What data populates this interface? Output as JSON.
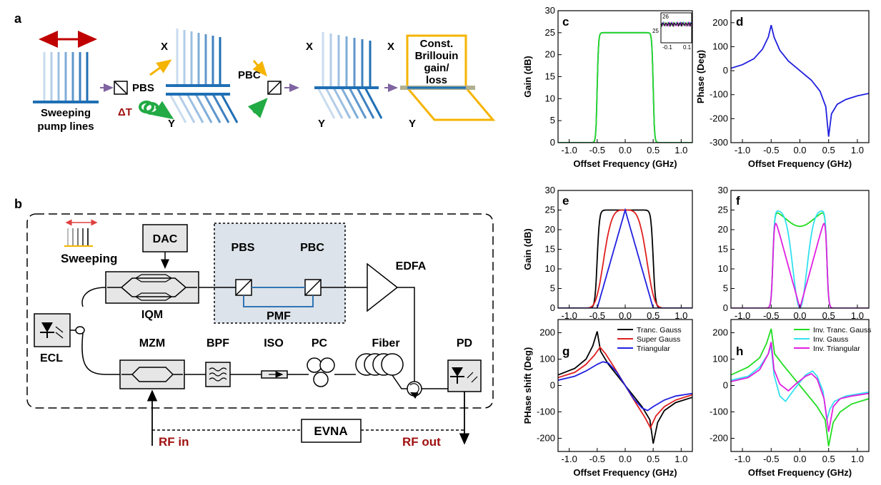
{
  "colors": {
    "pump": "#1f6fb4",
    "arrow_red": "#c00000",
    "arrow_yellow": "#f5b400",
    "arrow_green": "#22aa44",
    "purple": "#8064a2",
    "dark_red_text": "#a01010",
    "box_fill": "#e6e6e6",
    "pbs_area_fill": "#dde3ea",
    "pmf_blue": "#2f75b5",
    "black": "#000000",
    "red": "#e02020",
    "blue": "#2020e0",
    "green": "#22dd22",
    "cyan": "#33e0f0",
    "magenta": "#e020e0"
  },
  "panels": {
    "a": "a",
    "b": "b",
    "c": "c",
    "d": "d",
    "e": "e",
    "f": "f",
    "g": "g",
    "h": "h"
  },
  "panel_a": {
    "sweeping_line1": "Sweeping",
    "sweeping_line2": "pump lines",
    "pbs": "PBS",
    "pbc": "PBC",
    "delta_t": "ΔT",
    "x": "X",
    "y": "Y",
    "const_line1": "Const.",
    "const_line2": "Brillouin",
    "const_line3": "gain/",
    "const_line4": "loss"
  },
  "panel_b": {
    "sweeping": "Sweeping",
    "dac": "DAC",
    "iqm": "IQM",
    "pbs": "PBS",
    "pbc": "PBC",
    "pmf": "PMF",
    "edfa": "EDFA",
    "ecl": "ECL",
    "mzm": "MZM",
    "bpf": "BPF",
    "iso": "ISO",
    "pc": "PC",
    "fiber": "Fiber",
    "pd": "PD",
    "evna": "EVNA",
    "rf_in": "RF in",
    "rf_out": "RF out"
  },
  "chart_data": [
    {
      "id": "c",
      "type": "line",
      "xlabel": "Offset Frequency (GHz)",
      "ylabel": "Gain (dB)",
      "xlim": [
        -1.2,
        1.2
      ],
      "ylim": [
        0,
        30
      ],
      "xticks": [
        -1.0,
        -0.5,
        0.0,
        0.5,
        1.0
      ],
      "xticklabels": [
        "-1.0",
        "-0.5",
        "0.0",
        "0.5",
        "1.0"
      ],
      "yticks": [
        0,
        5,
        10,
        15,
        20,
        25,
        30
      ],
      "yticklabels": [
        "0",
        "5",
        "10",
        "15",
        "20",
        "25",
        "30"
      ],
      "inset": {
        "yticklabels": [
          "26",
          "25"
        ],
        "xticklabels": [
          "-0.1",
          "0.1"
        ]
      },
      "curves": [
        {
          "model": "rect",
          "w": 0.5,
          "s": 0.012,
          "amp": 25,
          "color": "#2020e0"
        },
        {
          "model": "rect",
          "w": 0.5,
          "s": 0.012,
          "amp": 25,
          "color": "#22dd22"
        }
      ]
    },
    {
      "id": "d",
      "type": "line",
      "xlabel": "Offset Frequency (GHz)",
      "ylabel": "Phase (Deg)",
      "xlim": [
        -1.2,
        1.2
      ],
      "ylim": [
        -300,
        250
      ],
      "xticks": [
        -1.0,
        -0.5,
        0.0,
        0.5,
        1.0
      ],
      "xticklabels": [
        "-1.0",
        "-0.5",
        "0.0",
        "0.5",
        "1.0"
      ],
      "yticks": [
        -300,
        -200,
        -100,
        0,
        100,
        200
      ],
      "yticklabels": [
        "-300",
        "-200",
        "-100",
        "0",
        "100",
        "200"
      ],
      "points": [
        [
          -1.2,
          10
        ],
        [
          -1.0,
          25
        ],
        [
          -0.8,
          50
        ],
        [
          -0.65,
          90
        ],
        [
          -0.55,
          140
        ],
        [
          -0.5,
          190
        ],
        [
          -0.45,
          140
        ],
        [
          -0.35,
          85
        ],
        [
          -0.2,
          40
        ],
        [
          0.0,
          0
        ],
        [
          0.2,
          -40
        ],
        [
          0.35,
          -85
        ],
        [
          0.45,
          -150
        ],
        [
          0.5,
          -275
        ],
        [
          0.55,
          -180
        ],
        [
          0.65,
          -140
        ],
        [
          0.8,
          -120
        ],
        [
          1.0,
          -105
        ],
        [
          1.2,
          -95
        ]
      ],
      "color": "#2020e0"
    },
    {
      "id": "e",
      "type": "line",
      "xlabel": "",
      "ylabel": "Gain (dB)",
      "xlim": [
        -1.2,
        1.2
      ],
      "ylim": [
        0,
        30
      ],
      "xticks": [
        -1.0,
        -0.5,
        0.0,
        0.5,
        1.0
      ],
      "xticklabels": [
        "-1.0",
        "-0.5",
        "0.0",
        "0.5",
        "1.0"
      ],
      "yticks": [
        0,
        5,
        10,
        15,
        20,
        25,
        30
      ],
      "yticklabels": [
        "0",
        "5",
        "10",
        "15",
        "20",
        "25",
        "30"
      ],
      "curves": [
        {
          "model": "rect",
          "w": 0.5,
          "s": 0.02,
          "amp": 25,
          "color": "#000000"
        },
        {
          "model": "supergauss",
          "w": 0.42,
          "amp": 25,
          "color": "#e02020"
        },
        {
          "model": "triangle",
          "w": 0.5,
          "amp": 25,
          "color": "#2020e0"
        }
      ]
    },
    {
      "id": "f",
      "type": "line",
      "xlabel": "",
      "ylabel": "",
      "xlim": [
        -1.2,
        1.2
      ],
      "ylim": [
        0,
        30
      ],
      "xticks": [
        -1.0,
        -0.5,
        0.0,
        0.5,
        1.0
      ],
      "xticklabels": [
        "-1.0",
        "-0.5",
        "0.0",
        "0.5",
        "1.0"
      ],
      "yticks": [
        0,
        5,
        10,
        15,
        20,
        25,
        30
      ],
      "yticklabels": [
        "0",
        "5",
        "10",
        "15",
        "20",
        "25",
        "30"
      ],
      "curves": [
        {
          "model": "invtrunc",
          "w": 0.47,
          "amp": 25,
          "color": "#22dd22"
        },
        {
          "model": "invgauss",
          "w": 0.47,
          "amp": 25,
          "color": "#33e0f0"
        },
        {
          "model": "invtri",
          "w": 0.47,
          "amp": 25,
          "color": "#e020e0"
        }
      ]
    },
    {
      "id": "g",
      "type": "line",
      "xlabel": "Offset Frequency (GHz)",
      "ylabel": "PHase shift (Deg)",
      "xlim": [
        -1.2,
        1.2
      ],
      "ylim": [
        -250,
        250
      ],
      "xticks": [
        -1.0,
        -0.5,
        0.0,
        0.5,
        1.0
      ],
      "xticklabels": [
        "-1.0",
        "-0.5",
        "0.0",
        "0.5",
        "1.0"
      ],
      "yticks": [
        -200,
        -100,
        0,
        100,
        200
      ],
      "yticklabels": [
        "-200",
        "-100",
        "0",
        "100",
        "200"
      ],
      "series": [
        {
          "name": "Tranc. Gauss",
          "color": "#000000",
          "points": [
            [
              -1.2,
              40
            ],
            [
              -0.9,
              65
            ],
            [
              -0.7,
              100
            ],
            [
              -0.58,
              150
            ],
            [
              -0.5,
              205
            ],
            [
              -0.44,
              130
            ],
            [
              -0.3,
              80
            ],
            [
              -0.15,
              40
            ],
            [
              0.0,
              0
            ],
            [
              0.15,
              -40
            ],
            [
              0.3,
              -80
            ],
            [
              0.44,
              -130
            ],
            [
              0.5,
              -220
            ],
            [
              0.58,
              -140
            ],
            [
              0.7,
              -95
            ],
            [
              0.9,
              -65
            ],
            [
              1.2,
              -45
            ]
          ]
        },
        {
          "name": "Super Gauss",
          "color": "#e02020",
          "points": [
            [
              -1.2,
              30
            ],
            [
              -0.9,
              50
            ],
            [
              -0.7,
              80
            ],
            [
              -0.55,
              115
            ],
            [
              -0.45,
              145
            ],
            [
              -0.35,
              120
            ],
            [
              -0.2,
              70
            ],
            [
              0.0,
              0
            ],
            [
              0.2,
              -70
            ],
            [
              0.35,
              -120
            ],
            [
              0.45,
              -160
            ],
            [
              0.55,
              -115
            ],
            [
              0.7,
              -80
            ],
            [
              0.9,
              -55
            ],
            [
              1.2,
              -35
            ]
          ]
        },
        {
          "name": "Triangular",
          "color": "#2020e0",
          "points": [
            [
              -1.2,
              20
            ],
            [
              -0.9,
              35
            ],
            [
              -0.7,
              55
            ],
            [
              -0.5,
              80
            ],
            [
              -0.4,
              90
            ],
            [
              -0.3,
              85
            ],
            [
              -0.15,
              50
            ],
            [
              0.0,
              0
            ],
            [
              0.15,
              -50
            ],
            [
              0.3,
              -85
            ],
            [
              0.4,
              -95
            ],
            [
              0.5,
              -80
            ],
            [
              0.7,
              -55
            ],
            [
              0.9,
              -40
            ],
            [
              1.2,
              -30
            ]
          ]
        }
      ],
      "legend": "top-right"
    },
    {
      "id": "h",
      "type": "line",
      "xlabel": "Offset Frequency (GHz)",
      "ylabel": "",
      "xlim": [
        -1.2,
        1.2
      ],
      "ylim": [
        -250,
        250
      ],
      "xticks": [
        -1.0,
        -0.5,
        0.0,
        0.5,
        1.0
      ],
      "xticklabels": [
        "-1.0",
        "-0.5",
        "0.0",
        "0.5",
        "1.0"
      ],
      "yticks": [
        -200,
        -100,
        0,
        100,
        200
      ],
      "yticklabels": [
        "-200",
        "-100",
        "0",
        "100",
        "200"
      ],
      "series": [
        {
          "name": "Inv. Tranc. Gauss",
          "color": "#22dd22",
          "points": [
            [
              -1.2,
              40
            ],
            [
              -0.9,
              70
            ],
            [
              -0.7,
              105
            ],
            [
              -0.58,
              160
            ],
            [
              -0.5,
              215
            ],
            [
              -0.44,
              120
            ],
            [
              -0.3,
              80
            ],
            [
              -0.15,
              40
            ],
            [
              0.0,
              0
            ],
            [
              0.15,
              -40
            ],
            [
              0.3,
              -80
            ],
            [
              0.44,
              -130
            ],
            [
              0.5,
              -230
            ],
            [
              0.58,
              -140
            ],
            [
              0.7,
              -100
            ],
            [
              0.9,
              -70
            ],
            [
              1.2,
              -50
            ]
          ]
        },
        {
          "name": "Inv. Gauss",
          "color": "#33e0f0",
          "points": [
            [
              -1.2,
              20
            ],
            [
              -0.9,
              35
            ],
            [
              -0.7,
              70
            ],
            [
              -0.55,
              120
            ],
            [
              -0.5,
              150
            ],
            [
              -0.45,
              40
            ],
            [
              -0.35,
              -40
            ],
            [
              -0.25,
              -60
            ],
            [
              -0.1,
              -15
            ],
            [
              0.1,
              40
            ],
            [
              0.22,
              55
            ],
            [
              0.3,
              35
            ],
            [
              0.4,
              -20
            ],
            [
              0.47,
              -130
            ],
            [
              0.52,
              -90
            ],
            [
              0.6,
              -60
            ],
            [
              0.8,
              -40
            ],
            [
              1.2,
              -25
            ]
          ]
        },
        {
          "name": "Inv. Triangular",
          "color": "#e020e0",
          "points": [
            [
              -1.2,
              15
            ],
            [
              -0.9,
              30
            ],
            [
              -0.7,
              60
            ],
            [
              -0.55,
              120
            ],
            [
              -0.5,
              165
            ],
            [
              -0.45,
              60
            ],
            [
              -0.35,
              5
            ],
            [
              -0.2,
              -20
            ],
            [
              -0.05,
              10
            ],
            [
              0.1,
              35
            ],
            [
              0.2,
              45
            ],
            [
              0.3,
              25
            ],
            [
              0.42,
              -50
            ],
            [
              0.5,
              -175
            ],
            [
              0.58,
              -80
            ],
            [
              0.7,
              -50
            ],
            [
              0.9,
              -40
            ],
            [
              1.2,
              -30
            ]
          ]
        }
      ],
      "legend": "top-right"
    }
  ]
}
